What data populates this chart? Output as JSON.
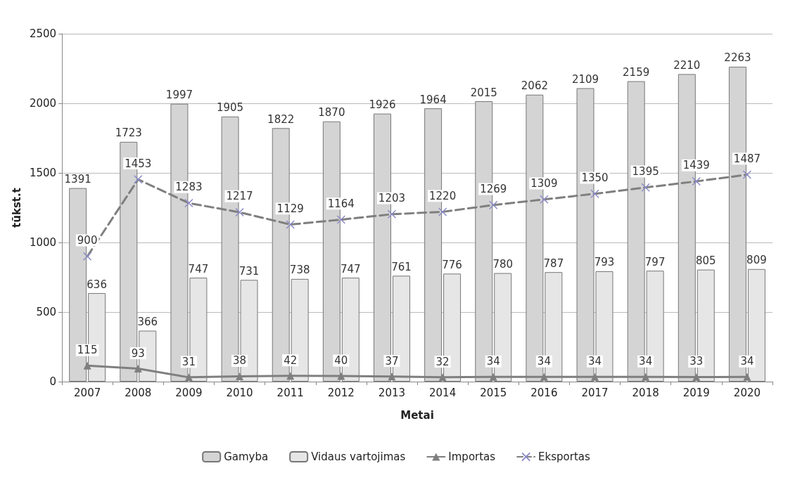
{
  "chart_data": {
    "type": "bar",
    "xlabel": "Metai",
    "ylabel": "tūkst.t",
    "categories": [
      "2007",
      "2008",
      "2009",
      "2010",
      "2011",
      "2012",
      "2013",
      "2014",
      "2015",
      "2016",
      "2017",
      "2018",
      "2019",
      "2020"
    ],
    "series": [
      {
        "name": "Gamyba",
        "color": "#d4d4d4",
        "values": [
          1391,
          1723,
          1997,
          1905,
          1822,
          1870,
          1926,
          1964,
          2015,
          2062,
          2109,
          2159,
          2210,
          2263
        ]
      },
      {
        "name": "Vidaus vartojimas",
        "color": "#e6e6e6",
        "values": [
          636,
          366,
          747,
          731,
          738,
          747,
          761,
          776,
          780,
          787,
          793,
          797,
          805,
          809
        ]
      },
      {
        "name": "Importas",
        "type": "line",
        "color": "#7f7f7f",
        "marker": "triangle",
        "line_style": "solid",
        "values": [
          115,
          93,
          31,
          38,
          42,
          40,
          37,
          32,
          34,
          34,
          34,
          34,
          33,
          34
        ]
      },
      {
        "name": "Eksportas",
        "type": "line",
        "color": "#8c8cc8",
        "marker": "cross",
        "line_style": "dashed",
        "values": [
          900,
          1453,
          1283,
          1217,
          1129,
          1164,
          1203,
          1220,
          1269,
          1309,
          1350,
          1395,
          1439,
          1487
        ]
      }
    ],
    "ylim": [
      0,
      2500
    ],
    "yticks": [
      0,
      500,
      1000,
      1500,
      2000,
      2500
    ],
    "grid": "y",
    "legend": "bottom",
    "data_labels": true
  }
}
